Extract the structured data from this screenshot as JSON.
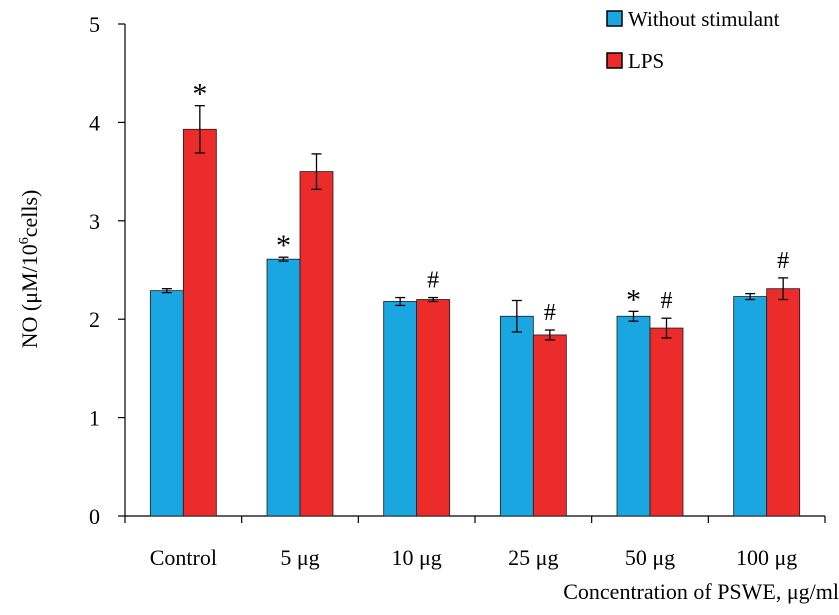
{
  "chart_data": {
    "type": "bar",
    "title": "",
    "xlabel": "Concentration of PSWE, μg/ml",
    "ylabel_prefix": "NO (μM/10",
    "ylabel_sup": "6",
    "ylabel_suffix": "cells)",
    "ylim": [
      0,
      5
    ],
    "yticks": [
      0,
      1,
      2,
      3,
      4,
      5
    ],
    "grid": false,
    "legend_position": "top-right",
    "categories": [
      "Control",
      "5 μg",
      "10 μg",
      "25 μg",
      "50 μg",
      "100 μg"
    ],
    "series": [
      {
        "name": "Without stimulant",
        "color": "#1aa6e0",
        "values": [
          2.29,
          2.61,
          2.18,
          2.03,
          2.03,
          2.23
        ],
        "errors": [
          0.02,
          0.02,
          0.04,
          0.16,
          0.05,
          0.03
        ],
        "annotations": [
          "",
          "*",
          "",
          "",
          "*",
          ""
        ]
      },
      {
        "name": "LPS",
        "color": "#ec2b2b",
        "values": [
          3.93,
          3.5,
          2.2,
          1.84,
          1.91,
          2.31
        ],
        "errors": [
          0.24,
          0.18,
          0.02,
          0.05,
          0.1,
          0.11
        ],
        "annotations": [
          "*",
          "",
          "#",
          "#",
          "#",
          "#"
        ]
      }
    ]
  }
}
